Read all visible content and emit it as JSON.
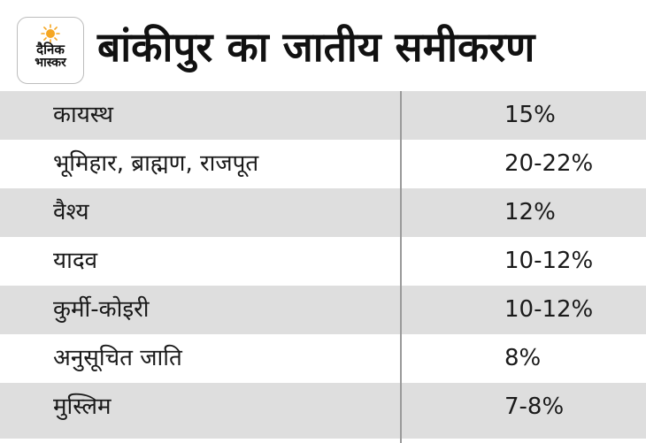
{
  "logo": {
    "line1": "दैनिक",
    "line2": "भास्कर"
  },
  "title": "बांकीपुर का जातीय समीकरण",
  "rows": [
    {
      "name": "कायस्थ",
      "value": "15%"
    },
    {
      "name": "भूमिहार, ब्राह्मण, राजपूत",
      "value": "20-22%"
    },
    {
      "name": "वैश्य",
      "value": "12%"
    },
    {
      "name": "यादव",
      "value": "10-12%"
    },
    {
      "name": "कुर्मी-कोइरी",
      "value": "10-12%"
    },
    {
      "name": "अनुसूचित जाति",
      "value": "8%"
    },
    {
      "name": "मुस्लिम",
      "value": "7-8%"
    }
  ],
  "colors": {
    "row_shade": "#dedede",
    "divider": "#9a9a9a",
    "sun": "#f5a623"
  }
}
